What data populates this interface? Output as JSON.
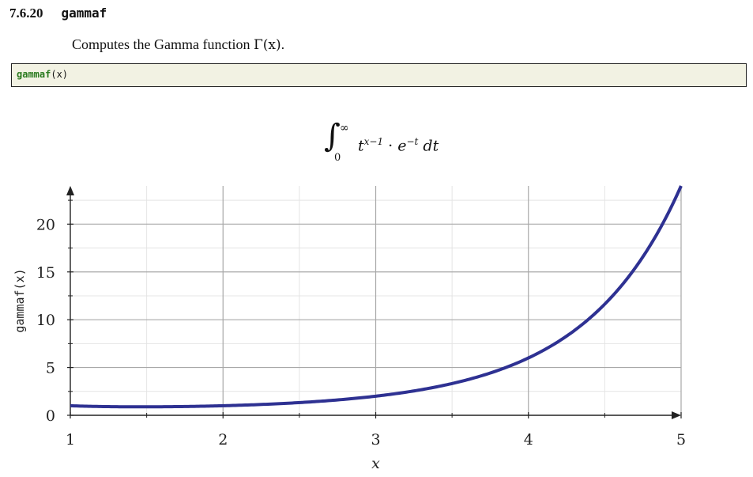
{
  "section": {
    "number": "7.6.20",
    "name": "gammaf"
  },
  "description": {
    "text": "Computes the Gamma function ",
    "math": "Γ(x)",
    "end": "."
  },
  "code": {
    "function": "gammaf",
    "args": "(x)"
  },
  "formula": {
    "integral": "∫",
    "upper": "∞",
    "lower": "0",
    "t": "t",
    "t_exp": "x−1",
    "dot": " · ",
    "e": "e",
    "e_exp": "−t",
    "dt": " dt"
  },
  "chart_data": {
    "type": "line",
    "function": "Gamma",
    "xlim": [
      1,
      5
    ],
    "ylim": [
      0,
      24
    ],
    "x_ticks": [
      1,
      2,
      3,
      4,
      5
    ],
    "y_ticks": [
      0,
      5,
      10,
      15,
      20
    ],
    "xlabel": "x",
    "ylabel": "gammaf(x)",
    "grid": true,
    "line_color": "#2e3192",
    "series": [
      {
        "x": [
          1.0,
          1.25,
          1.5,
          1.75,
          2.0,
          2.25,
          2.5,
          2.75,
          3.0,
          3.25,
          3.5,
          3.75,
          4.0,
          4.25,
          4.5,
          4.75,
          5.0
        ],
        "values": [
          1.0,
          0.906,
          0.886,
          0.919,
          1.0,
          1.133,
          1.329,
          1.608,
          2.0,
          2.549,
          3.323,
          4.423,
          6.0,
          8.285,
          11.632,
          16.586,
          24.0
        ]
      }
    ]
  }
}
